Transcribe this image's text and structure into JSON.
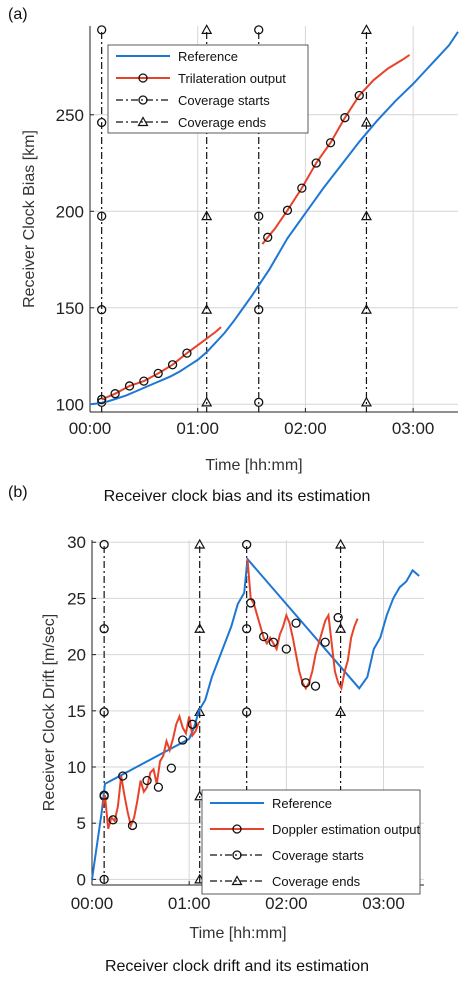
{
  "colors": {
    "reference": "#1f77d4",
    "estimate": "#e8432a",
    "marker": "#111111",
    "grid": "#d6d6d6",
    "axis": "#222222"
  },
  "chart_data": [
    {
      "panel_label": "(a)",
      "caption": "Receiver clock bias and its estimation",
      "type": "line",
      "xlabel": "Time [hh:mm]",
      "ylabel": "Receiver Clock Bias [km]",
      "xlim": [
        0,
        205
      ],
      "ylim": [
        96,
        296
      ],
      "xticks": [
        {
          "v": 0,
          "label": "00:00"
        },
        {
          "v": 60,
          "label": "01:00"
        },
        {
          "v": 120,
          "label": "02:00"
        },
        {
          "v": 180,
          "label": "03:00"
        }
      ],
      "yticks": [
        {
          "v": 100,
          "label": "100"
        },
        {
          "v": 150,
          "label": "150"
        },
        {
          "v": 200,
          "label": "200"
        },
        {
          "v": 250,
          "label": "250"
        }
      ],
      "grid": true,
      "legend": {
        "position": "top-left",
        "entries": [
          {
            "label": "Reference",
            "style": "ref"
          },
          {
            "label": "Trilateration output",
            "style": "est"
          },
          {
            "label": "Coverage starts",
            "style": "start"
          },
          {
            "label": "Coverage ends",
            "style": "end"
          }
        ]
      },
      "reference": {
        "x": [
          0,
          5,
          10,
          15,
          20,
          25,
          30,
          35,
          40,
          45,
          50,
          55,
          60,
          65,
          70,
          75,
          80,
          85,
          90,
          95,
          100,
          105,
          110,
          115,
          120,
          125,
          130,
          135,
          140,
          145,
          150,
          155,
          160,
          165,
          170,
          175,
          180,
          185,
          190,
          195,
          200,
          205
        ],
        "y": [
          100,
          100.5,
          101.5,
          103,
          104.5,
          106.5,
          108.5,
          110.5,
          112.5,
          114.5,
          117,
          120,
          123,
          127,
          132,
          137,
          143,
          149.5,
          156,
          163,
          170,
          178,
          186,
          192.5,
          199,
          205.5,
          212,
          218,
          224,
          230,
          236,
          241.5,
          247,
          252,
          257,
          261.5,
          266,
          271,
          276,
          281,
          286,
          293
        ]
      },
      "estimate": {
        "x": [
          6.5,
          14,
          22,
          30,
          38,
          46,
          54,
          62,
          70,
          73,
          96,
          99,
          103,
          110,
          118,
          126,
          134,
          142,
          150,
          158,
          166,
          174,
          178
        ],
        "y": [
          102.5,
          105.5,
          109.5,
          112,
          116,
          120.5,
          126.5,
          132,
          137.5,
          140,
          183,
          186.5,
          191,
          200.5,
          212,
          225,
          235.5,
          248.5,
          260,
          268,
          274,
          278.5,
          281
        ],
        "markers": [
          [
            6.5,
            102.5
          ],
          [
            14,
            105.5
          ],
          [
            22,
            109.5
          ],
          [
            30,
            112
          ],
          [
            38,
            116
          ],
          [
            46,
            120.5
          ],
          [
            54,
            126.5
          ],
          [
            99,
            186.5
          ],
          [
            110,
            200.5
          ],
          [
            118,
            212
          ],
          [
            126,
            225
          ],
          [
            134,
            235.5
          ],
          [
            142,
            248.5
          ],
          [
            150,
            260
          ]
        ]
      },
      "coverage_starts": {
        "x": [
          6.5,
          94
        ],
        "marker_y": [
          101,
          149,
          197.5,
          246,
          294
        ]
      },
      "coverage_ends": {
        "x": [
          65,
          154
        ],
        "marker_y": [
          101,
          149,
          197.5,
          246,
          294
        ]
      }
    },
    {
      "panel_label": "(b)",
      "caption": "Receiver clock drift and its estimation",
      "type": "line",
      "xlabel": "Time [hh:mm]",
      "ylabel": "Receiver Clock Drift [m/sec]",
      "xlim": [
        0,
        205
      ],
      "ylim": [
        -0.5,
        30.2
      ],
      "xticks": [
        {
          "v": 0,
          "label": "00:00"
        },
        {
          "v": 60,
          "label": "01:00"
        },
        {
          "v": 120,
          "label": "02:00"
        },
        {
          "v": 180,
          "label": "03:00"
        }
      ],
      "yticks": [
        {
          "v": 0,
          "label": "0"
        },
        {
          "v": 5,
          "label": "5"
        },
        {
          "v": 10,
          "label": "10"
        },
        {
          "v": 15,
          "label": "15"
        },
        {
          "v": 20,
          "label": "20"
        },
        {
          "v": 25,
          "label": "25"
        },
        {
          "v": 30,
          "label": "30"
        }
      ],
      "grid": true,
      "legend": {
        "position": "bottom-right",
        "entries": [
          {
            "label": "Reference",
            "style": "ref"
          },
          {
            "label": "Doppler estimation output",
            "style": "est"
          },
          {
            "label": "Coverage starts",
            "style": "start"
          },
          {
            "label": "Coverage ends",
            "style": "end"
          }
        ]
      },
      "reference": {
        "x": [
          0,
          3,
          6,
          8,
          60,
          63,
          66,
          70,
          74,
          78,
          82,
          86,
          90,
          94,
          96,
          165,
          170,
          174,
          178,
          182,
          186,
          190,
          194,
          198,
          202
        ],
        "y": [
          0,
          3,
          6,
          8.5,
          12.5,
          13.5,
          15,
          16,
          18,
          19.5,
          21,
          22.5,
          24.5,
          25.5,
          28.5,
          17,
          18,
          20.5,
          21.5,
          23.5,
          25,
          26,
          26.5,
          27.5,
          27
        ]
      },
      "estimate": {
        "x": [
          6.5,
          8,
          10,
          12,
          14,
          16,
          18,
          20,
          22,
          24,
          26,
          28,
          30,
          32,
          34,
          36,
          38,
          40,
          42,
          44,
          46,
          48,
          50,
          52,
          54,
          56,
          58,
          60,
          62,
          64,
          66,
          96,
          98,
          100,
          102,
          104,
          106,
          108,
          110,
          112,
          114,
          116,
          118,
          120,
          122,
          124,
          126,
          128,
          130,
          132,
          134,
          136,
          138,
          140,
          142,
          144,
          146,
          148,
          150,
          152,
          154,
          156,
          158,
          160,
          162,
          164
        ],
        "y": [
          6.5,
          7.5,
          4.5,
          5.5,
          5.2,
          6.5,
          9.2,
          7.5,
          6,
          4.8,
          5.5,
          7,
          8.8,
          7.8,
          8.2,
          9.5,
          9.8,
          8.5,
          10.5,
          11,
          12.3,
          11.5,
          12.5,
          13.8,
          14.5,
          13.5,
          13,
          14.5,
          12.8,
          13.2,
          14,
          28.5,
          25,
          24.5,
          23.5,
          22.5,
          21.5,
          21,
          21.5,
          21,
          20.5,
          21.8,
          22.5,
          23.5,
          22.8,
          21.5,
          20,
          18.5,
          17.5,
          17,
          17.5,
          18.5,
          20,
          21,
          22,
          23,
          23.5,
          21,
          18.5,
          17.5,
          17,
          18.5,
          19.5,
          21.5,
          22.5,
          23.2
        ]
      },
      "est_markers": [
        [
          7.5,
          7.5
        ],
        [
          13,
          5.3
        ],
        [
          19,
          9.2
        ],
        [
          25,
          4.8
        ],
        [
          34,
          8.8
        ],
        [
          41,
          8.2
        ],
        [
          49,
          9.9
        ],
        [
          56,
          12.4
        ],
        [
          62,
          13.8
        ],
        [
          98,
          24.6
        ],
        [
          106,
          21.6
        ],
        [
          112,
          21.1
        ],
        [
          120,
          20.5
        ],
        [
          126,
          22.8
        ],
        [
          132,
          17.5
        ],
        [
          138,
          17.2
        ],
        [
          144,
          21.1
        ],
        [
          152,
          23.3
        ]
      ],
      "coverage_starts": {
        "x": [
          7.5,
          95.5
        ],
        "marker_y": [
          0,
          7.4,
          14.9,
          22.3,
          29.8
        ]
      },
      "coverage_ends": {
        "x": [
          66.5,
          153.5
        ],
        "marker_y": [
          0,
          7.4,
          14.9,
          22.3,
          29.8
        ]
      }
    }
  ]
}
